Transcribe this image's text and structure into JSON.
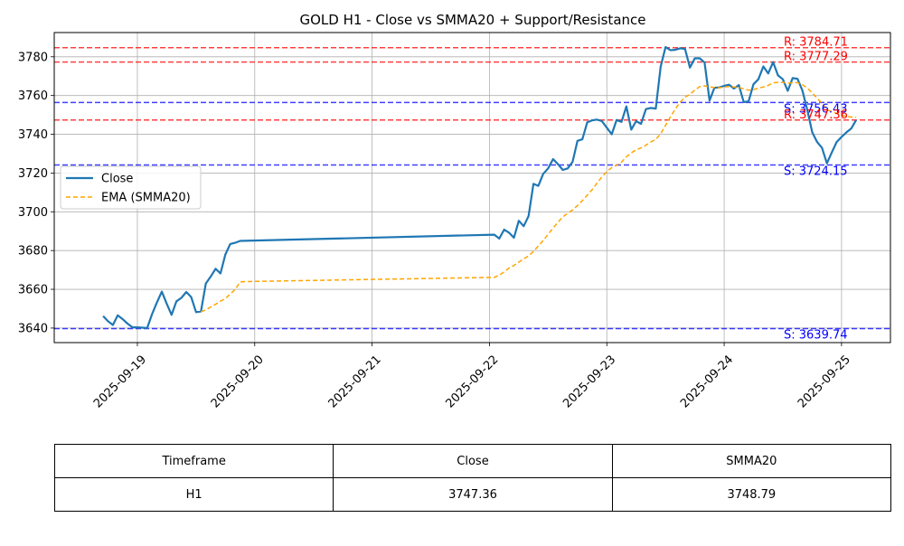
{
  "chart_data": {
    "type": "line",
    "title": "GOLD H1 - Close vs SMMA20 + Support/Resistance",
    "xlabel": "",
    "ylabel": "",
    "x_range": [
      "2025-09-18T07:00",
      "2025-09-25T10:00"
    ],
    "ylim": [
      3632.5,
      3792.5
    ],
    "yticks": [
      3640,
      3660,
      3680,
      3700,
      3720,
      3740,
      3760,
      3780
    ],
    "xticks": [
      "2025-09-19",
      "2025-09-20",
      "2025-09-21",
      "2025-09-22",
      "2025-09-23",
      "2025-09-24",
      "2025-09-25"
    ],
    "grid": true,
    "legend": {
      "position": "center-left",
      "entries": [
        {
          "label": "Close",
          "color": "#1f77b4",
          "style": "solid"
        },
        {
          "label": "EMA (SMMA20)",
          "color": "#ffa500",
          "style": "dashed"
        }
      ]
    },
    "series": [
      {
        "name": "Close",
        "color": "#1f77b4",
        "points": [
          [
            "2025-09-18T17:00",
            3646.2
          ],
          [
            "2025-09-18T18:00",
            3643.5
          ],
          [
            "2025-09-18T19:00",
            3641.6
          ],
          [
            "2025-09-18T20:00",
            3646.6
          ],
          [
            "2025-09-18T21:00",
            3644.6
          ],
          [
            "2025-09-18T22:00",
            3642.3
          ],
          [
            "2025-09-18T23:00",
            3640.4
          ],
          [
            "2025-09-19T00:00",
            3640.4
          ],
          [
            "2025-09-19T01:00",
            3640.2
          ],
          [
            "2025-09-19T02:00",
            3640.0
          ],
          [
            "2025-09-19T03:00",
            3647.2
          ],
          [
            "2025-09-19T04:00",
            3653.2
          ],
          [
            "2025-09-19T05:00",
            3658.8
          ],
          [
            "2025-09-19T06:00",
            3652.6
          ],
          [
            "2025-09-19T07:00",
            3646.8
          ],
          [
            "2025-09-19T08:00",
            3653.8
          ],
          [
            "2025-09-19T09:00",
            3655.6
          ],
          [
            "2025-09-19T10:00",
            3658.6
          ],
          [
            "2025-09-19T11:00",
            3656.0
          ],
          [
            "2025-09-19T12:00",
            3648.2
          ],
          [
            "2025-09-19T13:00",
            3648.6
          ],
          [
            "2025-09-19T14:00",
            3663.0
          ],
          [
            "2025-09-19T15:00",
            3666.6
          ],
          [
            "2025-09-19T16:00",
            3670.6
          ],
          [
            "2025-09-19T17:00",
            3668.2
          ],
          [
            "2025-09-19T18:00",
            3678.0
          ],
          [
            "2025-09-19T19:00",
            3683.4
          ],
          [
            "2025-09-19T20:00",
            3684.0
          ],
          [
            "2025-09-19T21:00",
            3685.0
          ],
          [
            "2025-09-22T01:00",
            3688.2
          ],
          [
            "2025-09-22T02:00",
            3686.2
          ],
          [
            "2025-09-22T03:00",
            3690.8
          ],
          [
            "2025-09-22T04:00",
            3689.2
          ],
          [
            "2025-09-22T05:00",
            3686.6
          ],
          [
            "2025-09-22T06:00",
            3695.4
          ],
          [
            "2025-09-22T07:00",
            3692.6
          ],
          [
            "2025-09-22T08:00",
            3697.8
          ],
          [
            "2025-09-22T09:00",
            3714.4
          ],
          [
            "2025-09-22T10:00",
            3713.4
          ],
          [
            "2025-09-22T11:00",
            3719.6
          ],
          [
            "2025-09-22T12:00",
            3722.4
          ],
          [
            "2025-09-22T13:00",
            3727.2
          ],
          [
            "2025-09-22T14:00",
            3724.6
          ],
          [
            "2025-09-22T15:00",
            3721.6
          ],
          [
            "2025-09-22T16:00",
            3722.4
          ],
          [
            "2025-09-22T17:00",
            3725.8
          ],
          [
            "2025-09-22T18:00",
            3736.6
          ],
          [
            "2025-09-22T19:00",
            3737.4
          ],
          [
            "2025-09-22T20:00",
            3746.2
          ],
          [
            "2025-09-22T21:00",
            3747.2
          ],
          [
            "2025-09-22T22:00",
            3747.6
          ],
          [
            "2025-09-22T23:00",
            3746.8
          ],
          [
            "2025-09-23T00:00",
            3743.4
          ],
          [
            "2025-09-23T01:00",
            3740.0
          ],
          [
            "2025-09-23T02:00",
            3747.4
          ],
          [
            "2025-09-23T03:00",
            3746.4
          ],
          [
            "2025-09-23T04:00",
            3754.4
          ],
          [
            "2025-09-23T05:00",
            3742.4
          ],
          [
            "2025-09-23T06:00",
            3746.8
          ],
          [
            "2025-09-23T07:00",
            3745.4
          ],
          [
            "2025-09-23T08:00",
            3753.0
          ],
          [
            "2025-09-23T09:00",
            3753.6
          ],
          [
            "2025-09-23T10:00",
            3753.2
          ],
          [
            "2025-09-23T11:00",
            3774.8
          ],
          [
            "2025-09-23T12:00",
            3785.0
          ],
          [
            "2025-09-23T13:00",
            3783.4
          ],
          [
            "2025-09-23T14:00",
            3783.6
          ],
          [
            "2025-09-23T15:00",
            3784.4
          ],
          [
            "2025-09-23T16:00",
            3784.0
          ],
          [
            "2025-09-23T17:00",
            3774.4
          ],
          [
            "2025-09-23T18:00",
            3779.2
          ],
          [
            "2025-09-23T19:00",
            3779.2
          ],
          [
            "2025-09-23T20:00",
            3777.0
          ],
          [
            "2025-09-23T21:00",
            3757.4
          ],
          [
            "2025-09-23T22:00",
            3764.0
          ],
          [
            "2025-09-23T23:00",
            3764.2
          ],
          [
            "2025-09-24T00:00",
            3765.0
          ],
          [
            "2025-09-24T01:00",
            3765.6
          ],
          [
            "2025-09-24T02:00",
            3763.6
          ],
          [
            "2025-09-24T03:00",
            3765.4
          ],
          [
            "2025-09-24T04:00",
            3756.6
          ],
          [
            "2025-09-24T05:00",
            3757.0
          ],
          [
            "2025-09-24T06:00",
            3765.8
          ],
          [
            "2025-09-24T07:00",
            3768.4
          ],
          [
            "2025-09-24T08:00",
            3775.0
          ],
          [
            "2025-09-24T09:00",
            3771.4
          ],
          [
            "2025-09-24T10:00",
            3777.2
          ],
          [
            "2025-09-24T11:00",
            3770.4
          ],
          [
            "2025-09-24T12:00",
            3768.4
          ],
          [
            "2025-09-24T13:00",
            3762.4
          ],
          [
            "2025-09-24T14:00",
            3769.0
          ],
          [
            "2025-09-24T15:00",
            3768.6
          ],
          [
            "2025-09-24T16:00",
            3762.6
          ],
          [
            "2025-09-24T17:00",
            3752.6
          ],
          [
            "2025-09-24T18:00",
            3741.0
          ],
          [
            "2025-09-24T19:00",
            3736.0
          ],
          [
            "2025-09-24T20:00",
            3733.0
          ],
          [
            "2025-09-24T21:00",
            3725.0
          ],
          [
            "2025-09-24T22:00",
            3730.6
          ],
          [
            "2025-09-24T23:00",
            3736.0
          ],
          [
            "2025-09-25T00:00",
            3738.6
          ],
          [
            "2025-09-25T01:00",
            3741.0
          ],
          [
            "2025-09-25T02:00",
            3743.0
          ],
          [
            "2025-09-25T03:00",
            3747.4
          ]
        ]
      },
      {
        "name": "EMA (SMMA20)",
        "color": "#ffa500",
        "points": [
          [
            "2025-09-19T13:00",
            3648.4
          ],
          [
            "2025-09-19T14:00",
            3649.4
          ],
          [
            "2025-09-19T15:00",
            3650.9
          ],
          [
            "2025-09-19T16:00",
            3652.3
          ],
          [
            "2025-09-19T17:00",
            3653.9
          ],
          [
            "2025-09-19T18:00",
            3655.2
          ],
          [
            "2025-09-19T19:00",
            3657.6
          ],
          [
            "2025-09-19T20:00",
            3659.9
          ],
          [
            "2025-09-19T21:00",
            3663.8
          ],
          [
            "2025-09-19T22:00",
            3664.0
          ],
          [
            "2025-09-22T01:00",
            3666.2
          ],
          [
            "2025-09-22T02:00",
            3667.3
          ],
          [
            "2025-09-22T03:00",
            3669.0
          ],
          [
            "2025-09-22T04:00",
            3671.0
          ],
          [
            "2025-09-22T05:00",
            3672.3
          ],
          [
            "2025-09-22T06:00",
            3674.0
          ],
          [
            "2025-09-22T07:00",
            3675.8
          ],
          [
            "2025-09-22T08:00",
            3677.2
          ],
          [
            "2025-09-22T09:00",
            3679.5
          ],
          [
            "2025-09-22T10:00",
            3682.4
          ],
          [
            "2025-09-22T11:00",
            3685.2
          ],
          [
            "2025-09-22T12:00",
            3688.4
          ],
          [
            "2025-09-22T13:00",
            3691.6
          ],
          [
            "2025-09-22T14:00",
            3694.6
          ],
          [
            "2025-09-22T15:00",
            3697.4
          ],
          [
            "2025-09-22T16:00",
            3699.2
          ],
          [
            "2025-09-22T17:00",
            3701.0
          ],
          [
            "2025-09-22T18:00",
            3703.2
          ],
          [
            "2025-09-22T19:00",
            3705.8
          ],
          [
            "2025-09-22T20:00",
            3708.6
          ],
          [
            "2025-09-22T21:00",
            3711.4
          ],
          [
            "2025-09-22T22:00",
            3714.8
          ],
          [
            "2025-09-22T23:00",
            3718.0
          ],
          [
            "2025-09-23T00:00",
            3720.8
          ],
          [
            "2025-09-23T01:00",
            3722.8
          ],
          [
            "2025-09-23T02:00",
            3724.0
          ],
          [
            "2025-09-23T03:00",
            3725.6
          ],
          [
            "2025-09-23T04:00",
            3728.4
          ],
          [
            "2025-09-23T05:00",
            3730.4
          ],
          [
            "2025-09-23T06:00",
            3732.0
          ],
          [
            "2025-09-23T07:00",
            3733.0
          ],
          [
            "2025-09-23T08:00",
            3734.4
          ],
          [
            "2025-09-23T09:00",
            3736.0
          ],
          [
            "2025-09-23T10:00",
            3737.4
          ],
          [
            "2025-09-23T11:00",
            3740.2
          ],
          [
            "2025-09-23T12:00",
            3744.6
          ],
          [
            "2025-09-23T13:00",
            3749.0
          ],
          [
            "2025-09-23T14:00",
            3753.0
          ],
          [
            "2025-09-23T15:00",
            3756.6
          ],
          [
            "2025-09-23T16:00",
            3759.2
          ],
          [
            "2025-09-23T17:00",
            3760.6
          ],
          [
            "2025-09-23T18:00",
            3762.8
          ],
          [
            "2025-09-23T19:00",
            3764.6
          ],
          [
            "2025-09-23T20:00",
            3765.0
          ],
          [
            "2025-09-23T21:00",
            3764.4
          ],
          [
            "2025-09-23T22:00",
            3764.2
          ],
          [
            "2025-09-23T23:00",
            3764.0
          ],
          [
            "2025-09-24T00:00",
            3764.4
          ],
          [
            "2025-09-24T01:00",
            3764.6
          ],
          [
            "2025-09-24T02:00",
            3764.4
          ],
          [
            "2025-09-24T03:00",
            3764.2
          ],
          [
            "2025-09-24T04:00",
            3763.4
          ],
          [
            "2025-09-24T05:00",
            3762.8
          ],
          [
            "2025-09-24T06:00",
            3763.0
          ],
          [
            "2025-09-24T07:00",
            3763.8
          ],
          [
            "2025-09-24T08:00",
            3764.4
          ],
          [
            "2025-09-24T09:00",
            3765.2
          ],
          [
            "2025-09-24T10:00",
            3766.6
          ],
          [
            "2025-09-24T11:00",
            3766.8
          ],
          [
            "2025-09-24T12:00",
            3766.8
          ],
          [
            "2025-09-24T13:00",
            3766.4
          ],
          [
            "2025-09-24T14:00",
            3766.6
          ],
          [
            "2025-09-24T15:00",
            3766.6
          ],
          [
            "2025-09-24T16:00",
            3765.6
          ],
          [
            "2025-09-24T17:00",
            3763.8
          ],
          [
            "2025-09-24T18:00",
            3761.4
          ],
          [
            "2025-09-24T19:00",
            3758.6
          ],
          [
            "2025-09-24T20:00",
            3756.0
          ],
          [
            "2025-09-24T21:00",
            3752.6
          ],
          [
            "2025-09-24T22:00",
            3751.8
          ],
          [
            "2025-09-24T23:00",
            3750.8
          ],
          [
            "2025-09-25T00:00",
            3749.8
          ],
          [
            "2025-09-25T01:00",
            3749.2
          ],
          [
            "2025-09-25T02:00",
            3748.9
          ],
          [
            "2025-09-25T03:00",
            3748.79
          ]
        ]
      }
    ],
    "levels": [
      {
        "kind": "resistance",
        "value": 3784.71,
        "label": "R: 3784.71",
        "color": "#ff0000"
      },
      {
        "kind": "resistance",
        "value": 3777.29,
        "label": "R: 3777.29",
        "color": "#ff0000"
      },
      {
        "kind": "support",
        "value": 3756.43,
        "label": "S: 3756.43",
        "color": "#0000ff"
      },
      {
        "kind": "resistance",
        "value": 3747.36,
        "label": "R: 3747.36",
        "color": "#ff0000"
      },
      {
        "kind": "support",
        "value": 3724.15,
        "label": "S: 3724.15",
        "color": "#0000ff"
      },
      {
        "kind": "support",
        "value": 3639.74,
        "label": "S: 3639.74",
        "color": "#0000ff"
      }
    ],
    "table": {
      "headers": [
        "Timeframe",
        "Close",
        "SMMA20"
      ],
      "rows": [
        [
          "H1",
          "3747.36",
          "3748.79"
        ]
      ]
    }
  }
}
